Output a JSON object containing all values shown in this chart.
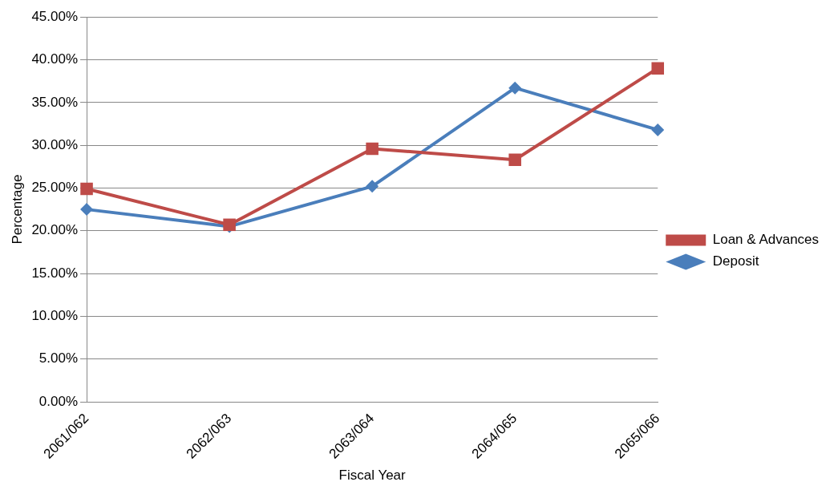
{
  "chart_data": {
    "type": "line",
    "xlabel": "Fiscal Year",
    "ylabel": "Percentage",
    "categories": [
      "2061/062",
      "2062/063",
      "2063/064",
      "2064/065",
      "2065/066"
    ],
    "series": [
      {
        "name": "Deposit",
        "color": "#4a7ebb",
        "marker": "diamond",
        "values": [
          22.5,
          20.5,
          25.2,
          36.7,
          31.8
        ]
      },
      {
        "name": "Loan & Advances",
        "color": "#be4b48",
        "marker": "square",
        "values": [
          24.9,
          20.7,
          29.6,
          28.3,
          39.0
        ]
      }
    ],
    "ylim": [
      0,
      45
    ],
    "yticks": [
      {
        "value": 0,
        "label": "0.00%"
      },
      {
        "value": 5,
        "label": "5.00%"
      },
      {
        "value": 10,
        "label": "10.00%"
      },
      {
        "value": 15,
        "label": "15.00%"
      },
      {
        "value": 20,
        "label": "20.00%"
      },
      {
        "value": 25,
        "label": "25.00%"
      },
      {
        "value": 30,
        "label": "30.00%"
      },
      {
        "value": 35,
        "label": "35.00%"
      },
      {
        "value": 40,
        "label": "40.00%"
      },
      {
        "value": 45,
        "label": "45.00%"
      }
    ],
    "grid": "y",
    "legend": "right",
    "line_style": "solid"
  }
}
